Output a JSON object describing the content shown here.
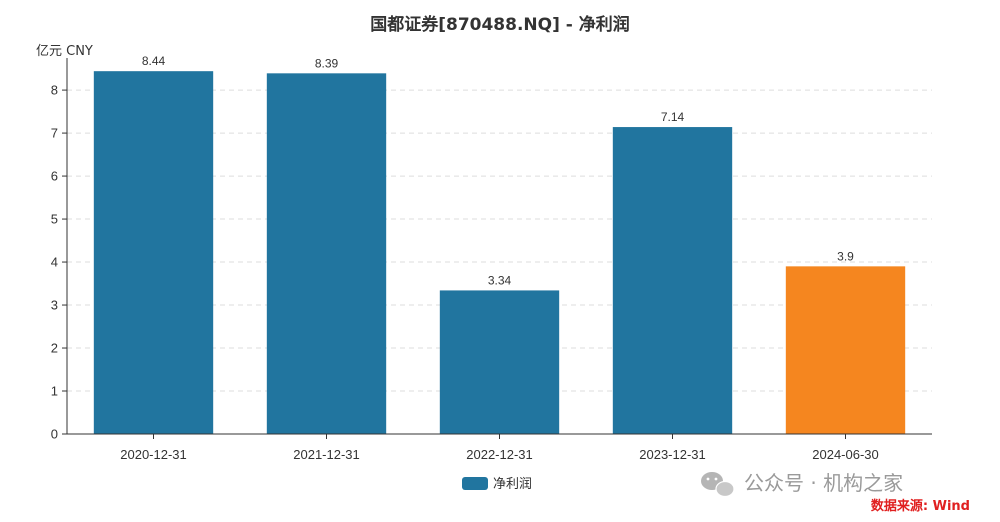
{
  "chart_data": {
    "type": "bar",
    "title": "国都证券[870488.NQ] - 净利润",
    "unit_label": "亿元  CNY",
    "xlabel": "",
    "ylabel": "",
    "categories": [
      "2020-12-31",
      "2021-12-31",
      "2022-12-31",
      "2023-12-31",
      "2024-06-30"
    ],
    "series": [
      {
        "name": "净利润",
        "values": [
          8.44,
          8.39,
          3.34,
          7.14,
          3.9
        ]
      }
    ],
    "data_labels": [
      "8.44",
      "8.39",
      "3.34",
      "7.14",
      "3.9"
    ],
    "highlight_index": 4,
    "ylim": [
      0,
      8.7
    ],
    "yticks": [
      0,
      1,
      2,
      3,
      4,
      5,
      6,
      7,
      8
    ],
    "grid": true,
    "legend_position": "bottom-center",
    "colors": {
      "bar": "#21759f",
      "highlight": "#f5861f",
      "grid": "#dddddd",
      "axis": "#333333"
    }
  },
  "watermark": {
    "text": "公众号 · 机构之家",
    "icon": "wechat-icon"
  },
  "source": {
    "text": "数据来源: Wind",
    "color": "#e02020"
  }
}
